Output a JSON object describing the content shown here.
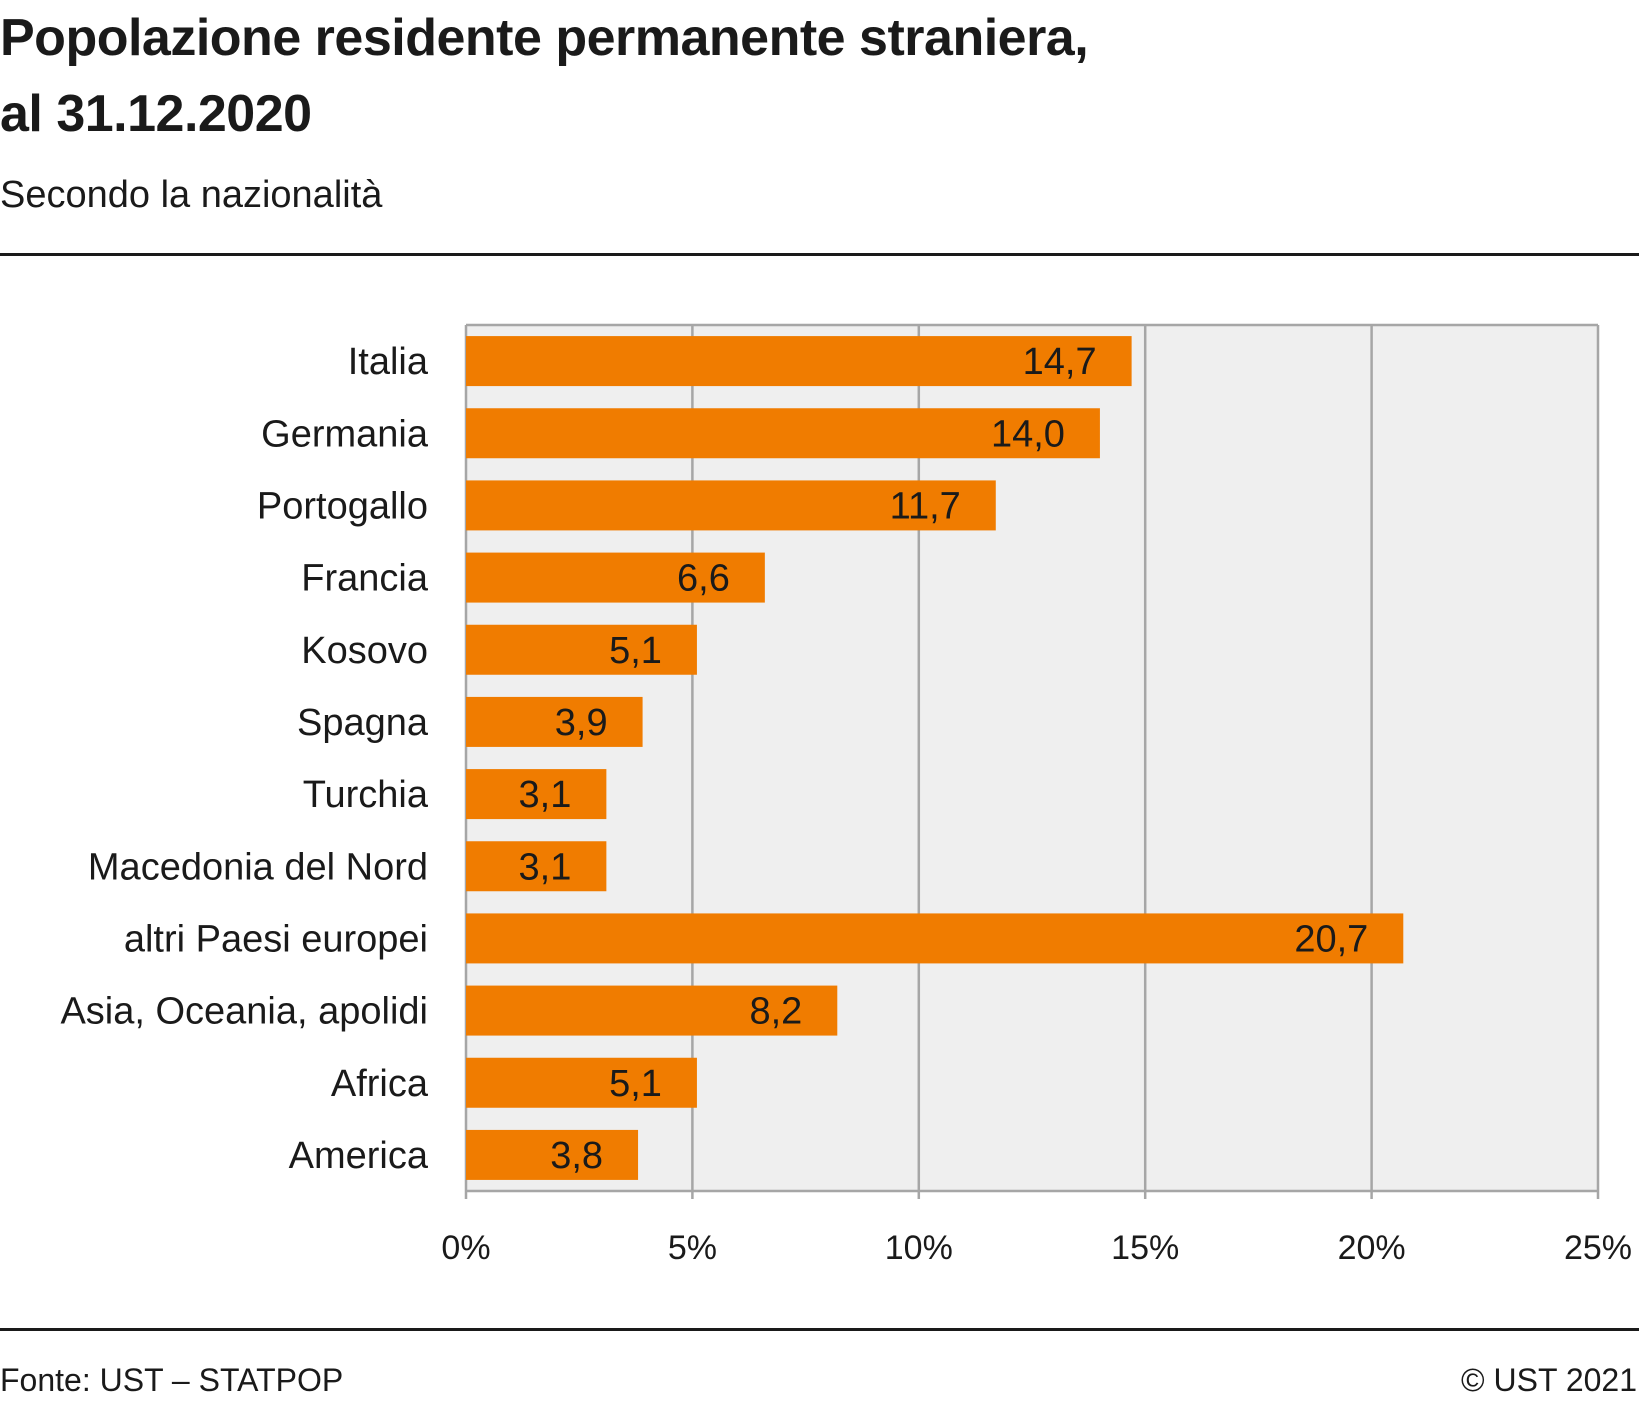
{
  "title_line1": "Popolazione residente permanente straniera,",
  "title_line2": "al 31.12.2020",
  "subtitle": "Secondo la nazionalità",
  "footer": {
    "source": "Fonte: UST – STATPOP",
    "copyright": "© UST 2021"
  },
  "colors": {
    "bar": "#f07c00",
    "plot_background": "#efefef",
    "grid": "#a6a6a6",
    "text": "#1a1a1a"
  },
  "chart_data": {
    "type": "bar",
    "orientation": "horizontal",
    "categories": [
      "Italia",
      "Germania",
      "Portogallo",
      "Francia",
      "Kosovo",
      "Spagna",
      "Turchia",
      "Macedonia del Nord",
      "altri Paesi europei",
      "Asia, Oceania, apolidi",
      "Africa",
      "America"
    ],
    "values": [
      14.7,
      14.0,
      11.7,
      6.6,
      5.1,
      3.9,
      3.1,
      3.1,
      20.7,
      8.2,
      5.1,
      3.8
    ],
    "data_labels": [
      "14,7",
      "14,0",
      "11,7",
      "6,6",
      "5,1",
      "3,9",
      "3,1",
      "3,1",
      "20,7",
      "8,2",
      "5,1",
      "3,8"
    ],
    "xlim": [
      0,
      25
    ],
    "xticks": [
      0,
      5,
      10,
      15,
      20,
      25
    ],
    "xtick_labels": [
      "0%",
      "5%",
      "10%",
      "15%",
      "20%",
      "25%"
    ],
    "grid": true
  }
}
